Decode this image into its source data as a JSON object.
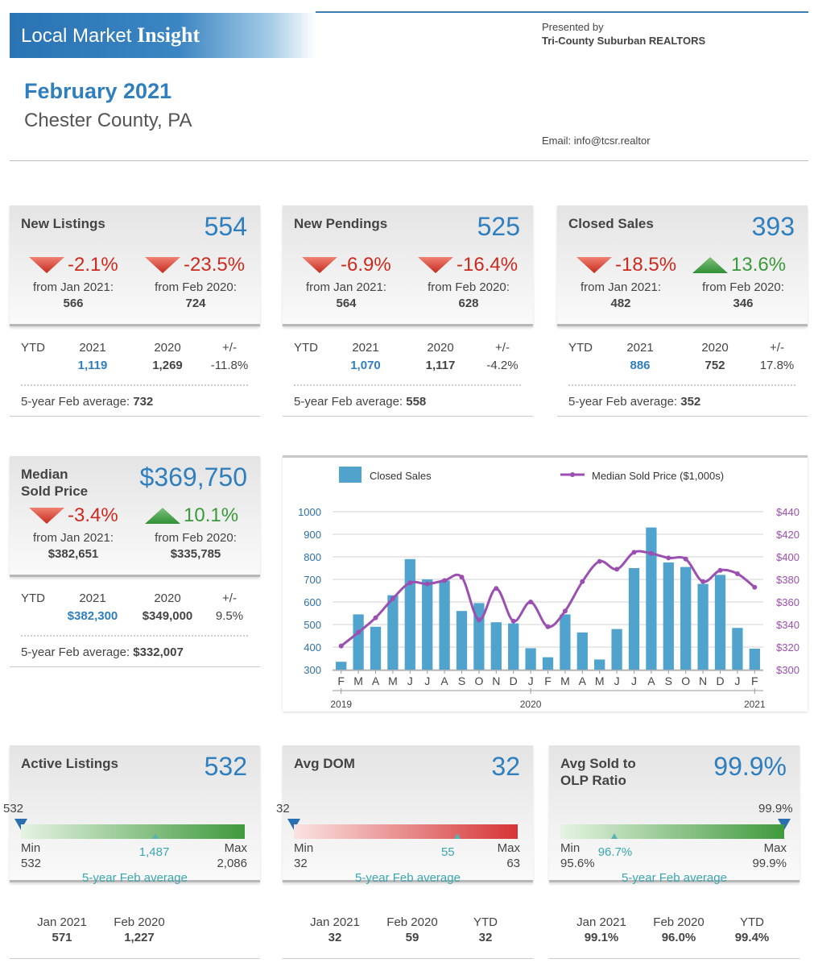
{
  "header": {
    "brand_plain": "Local Market ",
    "brand_bold": "Insight",
    "presented_by": "Presented by",
    "org": "Tri-County Suburban REALTORS",
    "email": "Email: info@tcsr.realtor",
    "month": "February 2021",
    "location": "Chester County, PA"
  },
  "cards": [
    {
      "label": "New Listings",
      "value": "554",
      "chg1": "-2.1%",
      "chg1_dir": "down",
      "chg2": "-23.5%",
      "chg2_dir": "down",
      "from1": "from Jan 2021:",
      "from1_val": "566",
      "from2": "from Feb 2020:",
      "from2_val": "724",
      "ytd": "YTD",
      "y1": "2021",
      "y2": "2020",
      "pm": "+/-",
      "y1v": "1,119",
      "y2v": "1,269",
      "pmv": "-11.8%",
      "avg_label": "5-year Feb average:",
      "avg_val": "732"
    },
    {
      "label": "New Pendings",
      "value": "525",
      "chg1": "-6.9%",
      "chg1_dir": "down",
      "chg2": "-16.4%",
      "chg2_dir": "down",
      "from1": "from Jan 2021:",
      "from1_val": "564",
      "from2": "from Feb 2020:",
      "from2_val": "628",
      "ytd": "YTD",
      "y1": "2021",
      "y2": "2020",
      "pm": "+/-",
      "y1v": "1,070",
      "y2v": "1,117",
      "pmv": "-4.2%",
      "avg_label": "5-year Feb average:",
      "avg_val": "558"
    },
    {
      "label": "Closed Sales",
      "value": "393",
      "chg1": "-18.5%",
      "chg1_dir": "down",
      "chg2": "13.6%",
      "chg2_dir": "up",
      "from1": "from Jan 2021:",
      "from1_val": "482",
      "from2": "from Feb 2020:",
      "from2_val": "346",
      "ytd": "YTD",
      "y1": "2021",
      "y2": "2020",
      "pm": "+/-",
      "y1v": "886",
      "y2v": "752",
      "pmv": "17.8%",
      "avg_label": "5-year Feb average:",
      "avg_val": "352"
    },
    {
      "label1": "Median",
      "label2": "Sold Price",
      "value": "$369,750",
      "chg1": "-3.4%",
      "chg1_dir": "down",
      "chg2": "10.1%",
      "chg2_dir": "up",
      "from1": "from Jan 2021:",
      "from1_val": "$382,651",
      "from2": "from Feb 2020:",
      "from2_val": "$335,785",
      "ytd": "YTD",
      "y1": "2021",
      "y2": "2020",
      "pm": "+/-",
      "y1v": "$382,300",
      "y2v": "$349,000",
      "pmv": "9.5%",
      "avg_label": "5-year Feb average:",
      "avg_val": "$332,007"
    }
  ],
  "gauges": [
    {
      "label": "Active Listings",
      "value": "532",
      "cur": "532",
      "min_label": "Min",
      "min": "532",
      "max_label": "Max",
      "max": "2,086",
      "avg": "1,487",
      "avg_label": "5-year Feb average",
      "cur_frac": 0.0,
      "avg_frac": 0.6,
      "b1": "Jan 2021",
      "b1v": "571",
      "b2": "Feb 2020",
      "b2v": "1,227",
      "color_start": "#e6f3e3",
      "color_end": "#3f9a3c"
    },
    {
      "label": "Avg DOM",
      "value": "32",
      "cur": "32",
      "min_label": "Min",
      "min": "32",
      "max_label": "Max",
      "max": "63",
      "avg": "55",
      "avg_label": "5-year Feb average",
      "cur_frac": 0.0,
      "avg_frac": 0.73,
      "b1": "Jan 2021",
      "b1v": "32",
      "b2": "Feb 2020",
      "b2v": "59",
      "b3": "YTD",
      "b3v": "32",
      "color_start": "#fbe3e3",
      "color_end": "#d63434"
    },
    {
      "label1": "Avg Sold to",
      "label2": "OLP Ratio",
      "value": "99.9%",
      "cur": "99.9%",
      "min_label": "Min",
      "min": "95.6%",
      "max_label": "Max",
      "max": "99.9%",
      "avg": "96.7%",
      "avg_label": "5-year Feb average",
      "cur_frac": 1.0,
      "avg_frac": 0.24,
      "b1": "Jan 2021",
      "b1v": "99.1%",
      "b2": "Feb 2020",
      "b2v": "96.0%",
      "b3": "YTD",
      "b3v": "99.4%",
      "color_start": "#e6f3e3",
      "color_end": "#3f9a3c"
    }
  ],
  "chart_data": {
    "type": "bar",
    "legend": {
      "bars": "Closed Sales",
      "line": "Median Sold Price ($1,000s)"
    },
    "categories": [
      "F",
      "M",
      "A",
      "M",
      "J",
      "J",
      "A",
      "S",
      "O",
      "N",
      "D",
      "J",
      "F",
      "M",
      "A",
      "M",
      "J",
      "J",
      "A",
      "S",
      "O",
      "N",
      "D",
      "J",
      "F"
    ],
    "years": [
      "2019",
      "2020",
      "2021"
    ],
    "year_positions": [
      0,
      11,
      24
    ],
    "series": [
      {
        "name": "Closed Sales",
        "axis": "left",
        "values": [
          335,
          545,
          490,
          630,
          790,
          700,
          695,
          560,
          595,
          510,
          505,
          395,
          355,
          545,
          465,
          345,
          480,
          750,
          930,
          775,
          755,
          680,
          720,
          485,
          393
        ]
      },
      {
        "name": "Median Sold Price ($1,000s)",
        "axis": "right",
        "values": [
          321,
          333,
          346,
          363,
          377,
          376,
          379,
          382,
          344,
          372,
          343,
          360,
          338,
          352,
          378,
          396,
          389,
          404,
          403,
          399,
          398,
          378,
          388,
          385,
          373
        ]
      }
    ],
    "ylim": [
      300,
      1000
    ],
    "yticks": [
      "300",
      "400",
      "500",
      "600",
      "700",
      "800",
      "900",
      "1000"
    ],
    "y2lim": [
      300,
      440
    ],
    "y2ticks": [
      "$300",
      "$320",
      "$340",
      "$360",
      "$380",
      "$400",
      "$420",
      "$440"
    ],
    "colors": {
      "bar": "#4fa3cc",
      "line": "#9b4fb0"
    }
  }
}
